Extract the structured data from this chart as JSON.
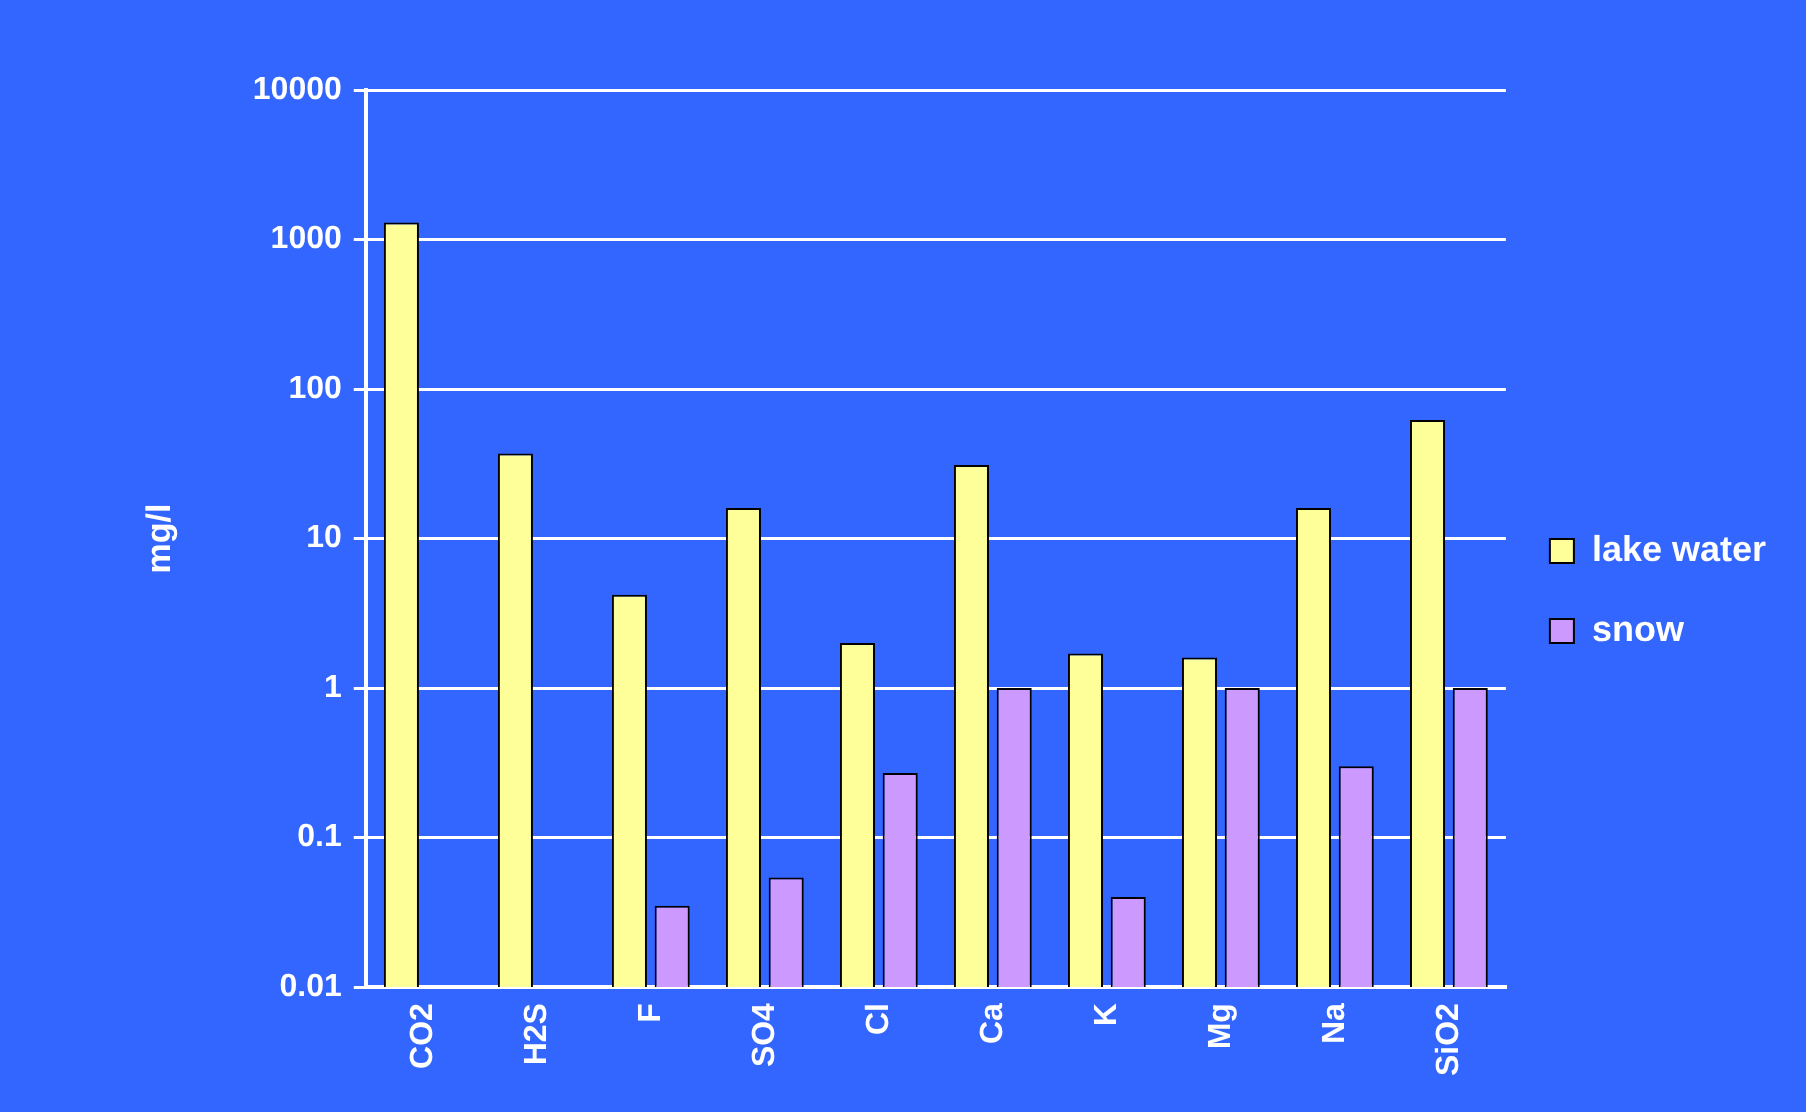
{
  "chart_data": {
    "type": "bar",
    "ylabel": "mg/l",
    "categories": [
      "CO2",
      "H2S",
      "F",
      "SO4",
      "Cl",
      "Ca",
      "K",
      "Mg",
      "Na",
      "SiO2"
    ],
    "series": [
      {
        "name": "lake water",
        "color": "#ffff99",
        "values": [
          1300,
          37,
          4.2,
          16,
          2,
          31,
          1.7,
          1.6,
          16,
          62
        ]
      },
      {
        "name": "snow",
        "color": "#cc99ff",
        "values": [
          null,
          null,
          0.035,
          0.054,
          0.27,
          1,
          0.04,
          1,
          0.3,
          1
        ]
      }
    ],
    "log": "y",
    "ylim": [
      0.01,
      10000
    ],
    "yticks": [
      0.01,
      0.1,
      1,
      10,
      100,
      1000,
      10000
    ],
    "grid": "y",
    "legend": "right"
  }
}
